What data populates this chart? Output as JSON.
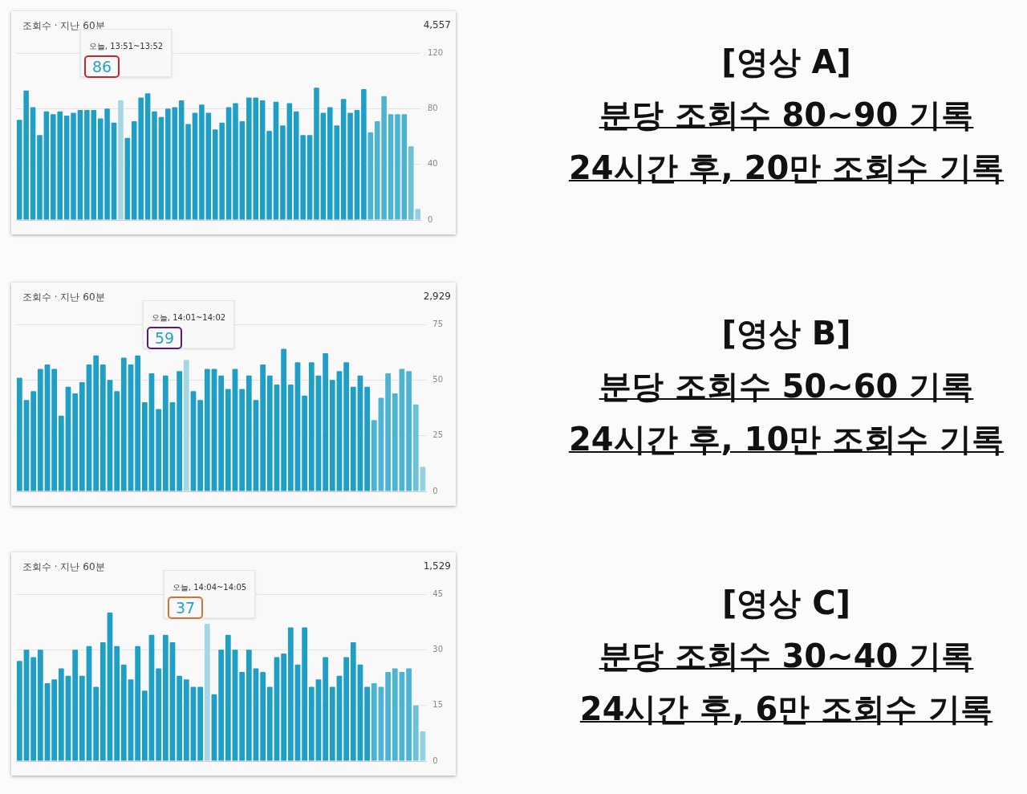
{
  "chart_data": [
    {
      "type": "bar",
      "title": "조회수 · 지난 60분",
      "categories": [
        null,
        null,
        null,
        null,
        null,
        null,
        null,
        null,
        null,
        null,
        null,
        null,
        null,
        null,
        null,
        null,
        null,
        null,
        null,
        null,
        null,
        null,
        null,
        null,
        null,
        null,
        null,
        null,
        null,
        null,
        null,
        null,
        null,
        null,
        null,
        null,
        null,
        null,
        null,
        null,
        null,
        null,
        null,
        null,
        null,
        null,
        null,
        null,
        null,
        null,
        null,
        null,
        null,
        null,
        null,
        null,
        null,
        null,
        null,
        null
      ],
      "values": [
        72,
        93,
        81,
        61,
        78,
        76,
        78,
        75,
        77,
        79,
        79,
        79,
        73,
        80,
        70,
        86,
        59,
        71,
        88,
        91,
        78,
        74,
        80,
        81,
        86,
        69,
        77,
        83,
        77,
        65,
        70,
        81,
        84,
        71,
        88,
        88,
        86,
        64,
        85,
        68,
        84,
        78,
        61,
        61,
        95,
        77,
        81,
        68,
        87,
        77,
        79,
        94,
        63,
        71,
        89,
        76,
        76,
        76,
        53,
        8
      ],
      "colors": [
        "#209fc6",
        "#209fc6",
        "#209fc6",
        "#209fc6",
        "#209fc6",
        "#209fc6",
        "#209fc6",
        "#209fc6",
        "#209fc6",
        "#209fc6",
        "#209fc6",
        "#209fc6",
        "#209fc6",
        "#209fc6",
        "#209fc6",
        "#a6d6e6",
        "#209fc6",
        "#209fc6",
        "#209fc6",
        "#209fc6",
        "#209fc6",
        "#209fc6",
        "#209fc6",
        "#209fc6",
        "#209fc6",
        "#209fc6",
        "#209fc6",
        "#209fc6",
        "#209fc6",
        "#209fc6",
        "#209fc6",
        "#209fc6",
        "#209fc6",
        "#209fc6",
        "#209fc6",
        "#209fc6",
        "#209fc6",
        "#209fc6",
        "#209fc6",
        "#209fc6",
        "#209fc6",
        "#209fc6",
        "#209fc6",
        "#209fc6",
        "#209fc6",
        "#209fc6",
        "#209fc6",
        "#209fc6",
        "#209fc6",
        "#209fc6",
        "#209fc6",
        "#209fc6",
        "#4db3d2",
        "#4db3d2",
        "#4db3d2",
        "#4db3d2",
        "#4db3d2",
        "#4db3d2",
        "#6cc0da",
        "#94d0e3"
      ],
      "ylim": [
        0,
        120
      ],
      "yticks": [
        0,
        40,
        80,
        120
      ],
      "grid": "y",
      "tick_labels": "y",
      "annotations": [
        "4,557",
        "오늘, 13:51~13:52",
        "86",
        "[영상 A]",
        "분당 조회수 80~90 기록",
        "24시간 후, 20만 조회수 기록"
      ]
    },
    {
      "type": "bar",
      "title": "조회수 · 지난 60분",
      "categories": [
        null,
        null,
        null,
        null,
        null,
        null,
        null,
        null,
        null,
        null,
        null,
        null,
        null,
        null,
        null,
        null,
        null,
        null,
        null,
        null,
        null,
        null,
        null,
        null,
        null,
        null,
        null,
        null,
        null,
        null,
        null,
        null,
        null,
        null,
        null,
        null,
        null,
        null,
        null,
        null,
        null,
        null,
        null,
        null,
        null,
        null,
        null,
        null,
        null,
        null,
        null,
        null,
        null,
        null,
        null,
        null,
        null,
        null,
        null
      ],
      "values": [
        51,
        41,
        45,
        55,
        57,
        55,
        34,
        47,
        44,
        49,
        57,
        61,
        57,
        50,
        45,
        60,
        57,
        61,
        40,
        53,
        37,
        52,
        40,
        54,
        59,
        45,
        41,
        55,
        55,
        52,
        46,
        55,
        46,
        52,
        41,
        57,
        52,
        48,
        64,
        48,
        58,
        43,
        58,
        52,
        62,
        50,
        54,
        58,
        47,
        52,
        47,
        32,
        42,
        53,
        44,
        55,
        54,
        39,
        11
      ],
      "colors": [
        "#209fc6",
        "#209fc6",
        "#209fc6",
        "#209fc6",
        "#209fc6",
        "#209fc6",
        "#209fc6",
        "#209fc6",
        "#209fc6",
        "#209fc6",
        "#209fc6",
        "#209fc6",
        "#209fc6",
        "#209fc6",
        "#209fc6",
        "#209fc6",
        "#209fc6",
        "#209fc6",
        "#209fc6",
        "#209fc6",
        "#209fc6",
        "#209fc6",
        "#209fc6",
        "#209fc6",
        "#a6d6e6",
        "#209fc6",
        "#209fc6",
        "#209fc6",
        "#209fc6",
        "#209fc6",
        "#209fc6",
        "#209fc6",
        "#209fc6",
        "#209fc6",
        "#209fc6",
        "#209fc6",
        "#209fc6",
        "#209fc6",
        "#209fc6",
        "#209fc6",
        "#209fc6",
        "#209fc6",
        "#209fc6",
        "#209fc6",
        "#209fc6",
        "#209fc6",
        "#209fc6",
        "#209fc6",
        "#209fc6",
        "#209fc6",
        "#209fc6",
        "#4db3d2",
        "#4db3d2",
        "#4db3d2",
        "#4db3d2",
        "#4db3d2",
        "#4db3d2",
        "#6cc0da",
        "#94d0e3"
      ],
      "ylim": [
        0,
        75
      ],
      "yticks": [
        0,
        25,
        50,
        75
      ],
      "grid": "y",
      "tick_labels": "y",
      "annotations": [
        "2,929",
        "오늘, 14:01~14:02",
        "59",
        "[영상 B]",
        "분당 조회수 50~60 기록",
        "24시간 후, 10만 조회수 기록"
      ]
    },
    {
      "type": "bar",
      "title": "조회수 · 지난 60분",
      "categories": [
        null,
        null,
        null,
        null,
        null,
        null,
        null,
        null,
        null,
        null,
        null,
        null,
        null,
        null,
        null,
        null,
        null,
        null,
        null,
        null,
        null,
        null,
        null,
        null,
        null,
        null,
        null,
        null,
        null,
        null,
        null,
        null,
        null,
        null,
        null,
        null,
        null,
        null,
        null,
        null,
        null,
        null,
        null,
        null,
        null,
        null,
        null,
        null,
        null,
        null,
        null,
        null,
        null,
        null,
        null,
        null,
        null,
        null,
        null
      ],
      "values": [
        27,
        30,
        28,
        30,
        21,
        22,
        25,
        23,
        30,
        23,
        31,
        20,
        32,
        40,
        31,
        26,
        22,
        31,
        19,
        34,
        25,
        34,
        32,
        23,
        22,
        20,
        20,
        37,
        18,
        30,
        34,
        30,
        24,
        30,
        25,
        24,
        20,
        28,
        29,
        36,
        26,
        36,
        20,
        22,
        28,
        20,
        23,
        28,
        32,
        26,
        20,
        21,
        20,
        24,
        25,
        24,
        25,
        15,
        8
      ],
      "colors": [
        "#209fc6",
        "#209fc6",
        "#209fc6",
        "#209fc6",
        "#209fc6",
        "#209fc6",
        "#209fc6",
        "#209fc6",
        "#209fc6",
        "#209fc6",
        "#209fc6",
        "#209fc6",
        "#209fc6",
        "#209fc6",
        "#209fc6",
        "#209fc6",
        "#209fc6",
        "#209fc6",
        "#209fc6",
        "#209fc6",
        "#209fc6",
        "#209fc6",
        "#209fc6",
        "#209fc6",
        "#209fc6",
        "#209fc6",
        "#209fc6",
        "#a6d6e6",
        "#209fc6",
        "#209fc6",
        "#209fc6",
        "#209fc6",
        "#209fc6",
        "#209fc6",
        "#209fc6",
        "#209fc6",
        "#209fc6",
        "#209fc6",
        "#209fc6",
        "#209fc6",
        "#209fc6",
        "#209fc6",
        "#209fc6",
        "#209fc6",
        "#209fc6",
        "#209fc6",
        "#209fc6",
        "#209fc6",
        "#209fc6",
        "#209fc6",
        "#209fc6",
        "#4db3d2",
        "#4db3d2",
        "#4db3d2",
        "#4db3d2",
        "#4db3d2",
        "#4db3d2",
        "#6cc0da",
        "#94d0e3"
      ],
      "ylim": [
        0,
        45
      ],
      "yticks": [
        0,
        15,
        30,
        45
      ],
      "grid": "y",
      "tick_labels": "y",
      "annotations": [
        "1,529",
        "오늘, 14:04~14:05",
        "37",
        "[영상 C]",
        "분당 조회수 30~40 기록",
        "24시간 후, 6만 조회수 기록"
      ]
    }
  ]
}
